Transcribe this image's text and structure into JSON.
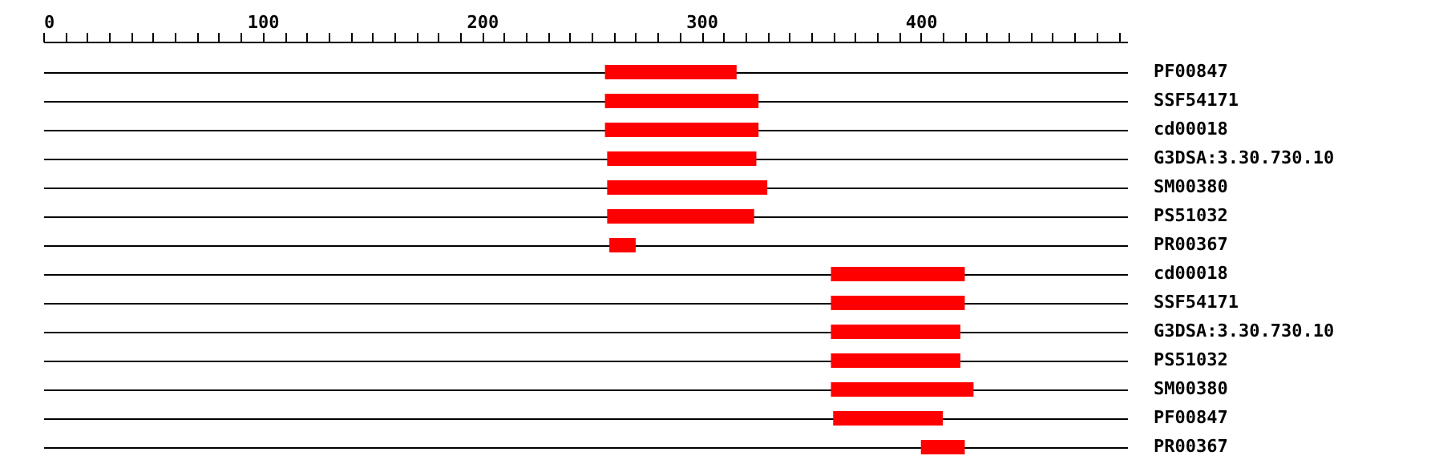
{
  "chart_data": {
    "type": "bar",
    "orientation": "horizontal",
    "categories": [
      "PF00847",
      "SSF54171",
      "cd00018",
      "G3DSA:3.30.730.10",
      "SM00380",
      "PS51032",
      "PR00367",
      "cd00018",
      "SSF54171",
      "G3DSA:3.30.730.10",
      "PS51032",
      "SM00380",
      "PF00847",
      "PR00367"
    ],
    "base": [
      256,
      256,
      256,
      257,
      257,
      257,
      258,
      359,
      359,
      359,
      359,
      359,
      360,
      400
    ],
    "values": [
      60,
      70,
      70,
      68,
      73,
      67,
      12,
      61,
      61,
      59,
      59,
      65,
      50,
      20
    ],
    "color": "#ff0000",
    "xlim": [
      0,
      494
    ],
    "xticks": [
      0,
      {
        "value": 10,
        "label": null
      },
      {
        "value": 20,
        "label": null
      },
      {
        "value": 30,
        "label": null
      },
      {
        "value": 40,
        "label": null
      },
      {
        "value": 50,
        "label": null
      },
      {
        "value": 60,
        "label": null
      },
      {
        "value": 70,
        "label": null
      },
      {
        "value": 80,
        "label": null
      },
      {
        "value": 90,
        "label": null
      },
      100,
      {
        "value": 110,
        "label": null
      },
      {
        "value": 120,
        "label": null
      },
      {
        "value": 130,
        "label": null
      },
      {
        "value": 140,
        "label": null
      },
      {
        "value": 150,
        "label": null
      },
      {
        "value": 160,
        "label": null
      },
      {
        "value": 170,
        "label": null
      },
      {
        "value": 180,
        "label": null
      },
      {
        "value": 190,
        "label": null
      },
      200,
      {
        "value": 210,
        "label": null
      },
      {
        "value": 220,
        "label": null
      },
      {
        "value": 230,
        "label": null
      },
      {
        "value": 240,
        "label": null
      },
      {
        "value": 250,
        "label": null
      },
      {
        "value": 260,
        "label": null
      },
      {
        "value": 270,
        "label": null
      },
      {
        "value": 280,
        "label": null
      },
      {
        "value": 290,
        "label": null
      },
      300,
      {
        "value": 310,
        "label": null
      },
      {
        "value": 320,
        "label": null
      },
      {
        "value": 330,
        "label": null
      },
      {
        "value": 340,
        "label": null
      },
      {
        "value": 350,
        "label": null
      },
      {
        "value": 360,
        "label": null
      },
      {
        "value": 370,
        "label": null
      },
      {
        "value": 380,
        "label": null
      },
      {
        "value": 390,
        "label": null
      },
      400,
      {
        "value": 410,
        "label": null
      },
      {
        "value": 420,
        "label": null
      },
      {
        "value": 430,
        "label": null
      },
      {
        "value": 440,
        "label": null
      },
      {
        "value": 450,
        "label": null
      },
      {
        "value": 460,
        "label": null
      },
      {
        "value": 470,
        "label": null
      },
      {
        "value": 480,
        "label": null
      },
      {
        "value": 490,
        "label": null
      }
    ],
    "grid": "y"
  }
}
